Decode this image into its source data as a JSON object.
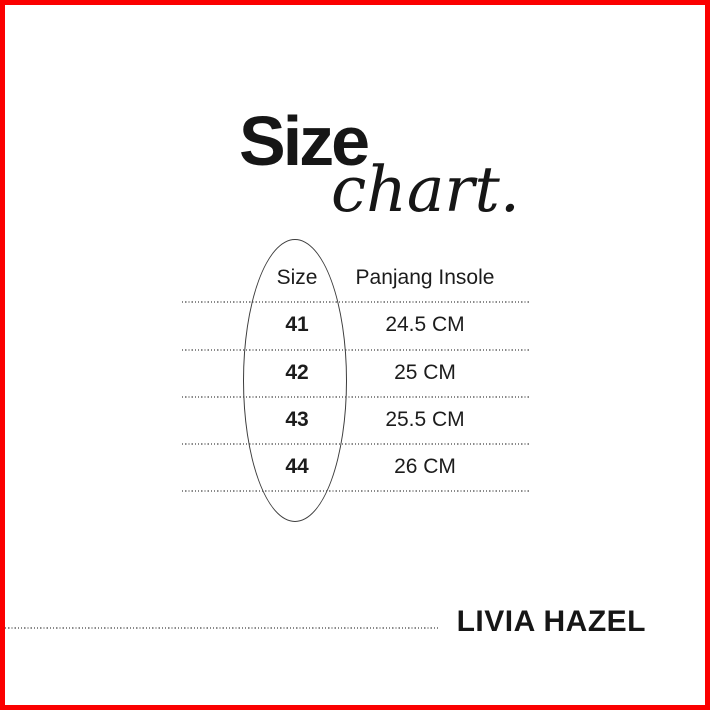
{
  "frame": {
    "border_color": "#fb0000"
  },
  "title": {
    "main": "Size",
    "script": "chart."
  },
  "table": {
    "headers": [
      "Size",
      "Panjang Insole"
    ],
    "rows": [
      {
        "size": "41",
        "insole": "24.5 CM"
      },
      {
        "size": "42",
        "insole": "25 CM"
      },
      {
        "size": "43",
        "insole": "25.5 CM"
      },
      {
        "size": "44",
        "insole": "26 CM"
      }
    ]
  },
  "brand": "LIVIA HAZEL",
  "chart_data": {
    "type": "table",
    "title": "Size chart.",
    "columns": [
      "Size",
      "Panjang Insole"
    ],
    "rows": [
      [
        "41",
        "24.5 CM"
      ],
      [
        "42",
        "25 CM"
      ],
      [
        "43",
        "25.5 CM"
      ],
      [
        "44",
        "26 CM"
      ]
    ],
    "annotations": [
      "Ellipse drawn around the Size column",
      "LIVIA HAZEL brand label at bottom right"
    ]
  }
}
